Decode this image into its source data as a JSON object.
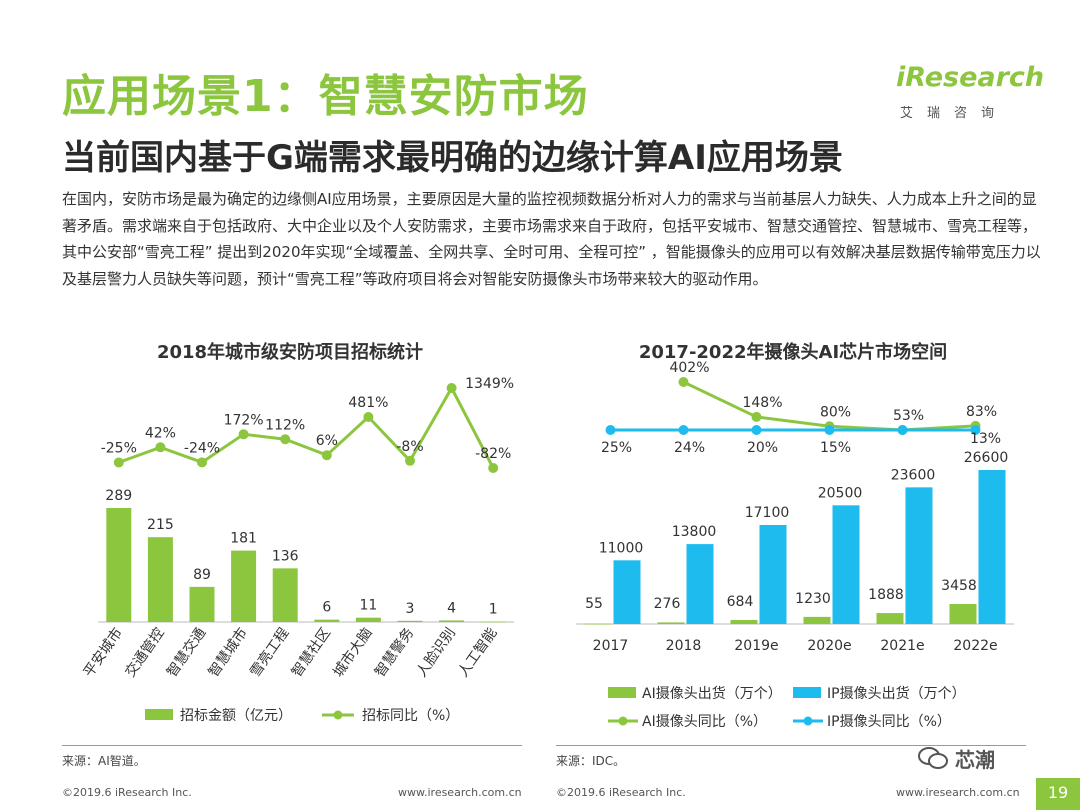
{
  "slide": {
    "title": "应用场景1：智慧安防市场",
    "subtitle": "当前国内基于G端需求最明确的边缘计算AI应用场景",
    "intro": "在国内，安防市场是最为确定的边缘侧AI应用场景，主要原因是大量的监控视频数据分析对人力的需求与当前基层人力缺失、人力成本上升之间的显著矛盾。需求端来自于包括政府、大中企业以及个人安防需求，主要市场需求来自于政府，包括平安城市、智慧交通管控、智慧城市、雪亮工程等，其中公安部“雪亮工程” 提出到2020年实现“全域覆盖、全网共享、全时可用、全程可控” ，智能摄像头的应用可以有效解决基层数据传输带宽压力以及基层警力人员缺失等问题，预计“雪亮工程”等政府项目将会对智能安防摄像头市场带来较大的驱动作用。",
    "page_number": "19"
  },
  "logo": {
    "main": "iResearch",
    "sub": "艾瑞咨询"
  },
  "footer": {
    "left_source": "来源：AI智道。",
    "right_source": "来源：IDC。",
    "copyright_left": "©2019.6 iResearch Inc.",
    "url_left": "www.iresearch.com.cn",
    "copyright_right": "©2019.6 iResearch Inc.",
    "url_right": "www.iresearch.com.cn",
    "watermark": "芯潮"
  },
  "colors": {
    "green": "#8cc63f",
    "blue": "#1ebbee",
    "title_green": "#8cc63f"
  },
  "chart_data": [
    {
      "type": "bar",
      "title": "2018年城市级安防项目招标统计",
      "categories": [
        "平安城市",
        "交通管控",
        "智慧交通",
        "智慧城市",
        "雪亮工程",
        "智慧社区",
        "城市大脑",
        "智慧警务",
        "人脸识别",
        "人工智能"
      ],
      "series": [
        {
          "name": "招标金额（亿元）",
          "type": "bar",
          "color": "#8cc63f",
          "values": [
            289,
            215,
            89,
            181,
            136,
            6,
            11,
            3,
            4,
            1
          ],
          "labels": [
            "289",
            "215",
            "89",
            "181",
            "136",
            "6",
            "11",
            "3",
            "4",
            "1"
          ]
        },
        {
          "name": "招标同比（%）",
          "type": "line",
          "color": "#8cc63f",
          "values": [
            -25,
            42,
            -24,
            172,
            112,
            6,
            481,
            -8,
            1349,
            -82
          ],
          "labels": [
            "-25%",
            "42%",
            "-24%",
            "172%",
            "112%",
            "6%",
            "481%",
            "-8%",
            "1349%",
            "-82%"
          ]
        }
      ],
      "legend": "bottom"
    },
    {
      "type": "bar",
      "title": "2017-2022年摄像头AI芯片市场空间",
      "categories": [
        "2017",
        "2018",
        "2019e",
        "2020e",
        "2021e",
        "2022e"
      ],
      "series": [
        {
          "name": "AI摄像头出货（万个）",
          "type": "bar",
          "color": "#8cc63f",
          "values": [
            55,
            276,
            684,
            1230,
            1888,
            3458
          ],
          "labels": [
            "55",
            "276",
            "684",
            "1230",
            "1888",
            "3458"
          ]
        },
        {
          "name": "IP摄像头出货（万个）",
          "type": "bar",
          "color": "#1ebbee",
          "values": [
            11000,
            13800,
            17100,
            20500,
            23600,
            26600
          ],
          "labels": [
            "11000",
            "13800",
            "17100",
            "20500",
            "23600",
            "26600"
          ]
        },
        {
          "name": "AI摄像头同比（%）",
          "type": "line",
          "color": "#8cc63f",
          "values": [
            null,
            402,
            148,
            80,
            53,
            83
          ],
          "labels": [
            "",
            "402%",
            "148%",
            "80%",
            "53%",
            "83%"
          ]
        },
        {
          "name": "IP摄像头同比（%）",
          "type": "line",
          "color": "#1ebbee",
          "values": [
            null,
            25,
            24,
            20,
            15,
            13
          ],
          "labels": [
            "",
            "25%",
            "24%",
            "20%",
            "15%",
            "13%"
          ]
        }
      ],
      "legend": "bottom"
    }
  ]
}
